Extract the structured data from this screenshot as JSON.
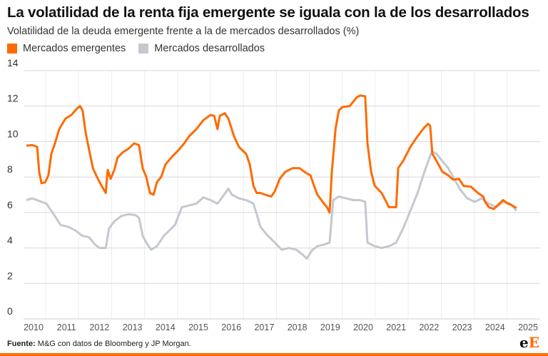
{
  "title": "La volatilidad de la renta fija emergente se iguala con la de los desarrollados",
  "subtitle": "Volatilidad de la deuda emergente frente a la de mercados desarrollados (%)",
  "footer": {
    "label": "Fuente:",
    "text": " M&G con datos de Bloomberg y JP Morgan."
  },
  "logo": {
    "text": "eE",
    "colors": [
      "#111111",
      "#ff6a00"
    ]
  },
  "accent": "#ff6a00",
  "chart_data": {
    "type": "line",
    "title": "",
    "xlabel": "",
    "ylabel": "",
    "ylim": [
      0,
      14
    ],
    "yticks": [
      0,
      2,
      4,
      6,
      8,
      10,
      12,
      14
    ],
    "xlim": [
      2009.75,
      2025.3
    ],
    "xticks": [
      2010,
      2011,
      2012,
      2013,
      2014,
      2015,
      2016,
      2017,
      2018,
      2019,
      2020,
      2021,
      2022,
      2023,
      2024,
      2025
    ],
    "grid": true,
    "legend": "top-left",
    "series": [
      {
        "name": "Mercados emergentes",
        "color": "#ff6a00",
        "points": [
          [
            2009.78,
            9.77
          ],
          [
            2009.96,
            9.8
          ],
          [
            2010.11,
            9.7
          ],
          [
            2010.17,
            8.3
          ],
          [
            2010.24,
            7.65
          ],
          [
            2010.35,
            7.7
          ],
          [
            2010.45,
            8.1
          ],
          [
            2010.54,
            9.3
          ],
          [
            2010.65,
            9.9
          ],
          [
            2010.78,
            10.7
          ],
          [
            2010.97,
            11.3
          ],
          [
            2011.15,
            11.5
          ],
          [
            2011.32,
            11.87
          ],
          [
            2011.41,
            12.0
          ],
          [
            2011.49,
            11.75
          ],
          [
            2011.58,
            10.5
          ],
          [
            2011.69,
            9.5
          ],
          [
            2011.8,
            8.5
          ],
          [
            2011.95,
            7.9
          ],
          [
            2012.08,
            7.45
          ],
          [
            2012.19,
            7.1
          ],
          [
            2012.25,
            8.4
          ],
          [
            2012.34,
            7.9
          ],
          [
            2012.45,
            8.4
          ],
          [
            2012.55,
            9.1
          ],
          [
            2012.71,
            9.4
          ],
          [
            2012.88,
            9.6
          ],
          [
            2013.05,
            9.9
          ],
          [
            2013.2,
            9.8
          ],
          [
            2013.31,
            8.5
          ],
          [
            2013.42,
            8.0
          ],
          [
            2013.53,
            7.1
          ],
          [
            2013.64,
            7.0
          ],
          [
            2013.74,
            7.7
          ],
          [
            2013.87,
            8.0
          ],
          [
            2014.0,
            8.7
          ],
          [
            2014.18,
            9.1
          ],
          [
            2014.39,
            9.5
          ],
          [
            2014.57,
            9.9
          ],
          [
            2014.72,
            10.3
          ],
          [
            2014.94,
            10.7
          ],
          [
            2015.15,
            11.2
          ],
          [
            2015.37,
            11.5
          ],
          [
            2015.48,
            11.45
          ],
          [
            2015.58,
            10.7
          ],
          [
            2015.65,
            11.45
          ],
          [
            2015.8,
            11.6
          ],
          [
            2015.91,
            11.3
          ],
          [
            2016.08,
            10.3
          ],
          [
            2016.23,
            9.7
          ],
          [
            2016.45,
            9.3
          ],
          [
            2016.56,
            8.7
          ],
          [
            2016.67,
            7.5
          ],
          [
            2016.77,
            7.1
          ],
          [
            2016.88,
            7.1
          ],
          [
            2017.03,
            7.0
          ],
          [
            2017.21,
            6.9
          ],
          [
            2017.32,
            7.2
          ],
          [
            2017.47,
            7.9
          ],
          [
            2017.64,
            8.3
          ],
          [
            2017.86,
            8.5
          ],
          [
            2018.07,
            8.5
          ],
          [
            2018.25,
            8.25
          ],
          [
            2018.4,
            8.1
          ],
          [
            2018.51,
            7.5
          ],
          [
            2018.61,
            7.0
          ],
          [
            2018.77,
            6.6
          ],
          [
            2018.9,
            6.3
          ],
          [
            2018.98,
            6.0
          ],
          [
            2019.05,
            8.3
          ],
          [
            2019.16,
            10.7
          ],
          [
            2019.26,
            11.75
          ],
          [
            2019.37,
            11.95
          ],
          [
            2019.59,
            12.0
          ],
          [
            2019.81,
            12.5
          ],
          [
            2019.91,
            12.6
          ],
          [
            2020.06,
            12.55
          ],
          [
            2020.13,
            9.9
          ],
          [
            2020.24,
            8.3
          ],
          [
            2020.35,
            7.5
          ],
          [
            2020.56,
            7.1
          ],
          [
            2020.67,
            6.7
          ],
          [
            2020.78,
            6.3
          ],
          [
            2021.0,
            6.3
          ],
          [
            2021.06,
            8.5
          ],
          [
            2021.21,
            8.9
          ],
          [
            2021.43,
            9.7
          ],
          [
            2021.65,
            10.3
          ],
          [
            2021.86,
            10.8
          ],
          [
            2021.97,
            11.0
          ],
          [
            2022.03,
            10.9
          ],
          [
            2022.1,
            9.3
          ],
          [
            2022.23,
            8.9
          ],
          [
            2022.4,
            8.3
          ],
          [
            2022.58,
            8.1
          ],
          [
            2022.73,
            7.85
          ],
          [
            2022.9,
            7.9
          ],
          [
            2023.05,
            7.5
          ],
          [
            2023.27,
            7.45
          ],
          [
            2023.48,
            7.1
          ],
          [
            2023.64,
            6.9
          ],
          [
            2023.7,
            6.6
          ],
          [
            2023.81,
            6.3
          ],
          [
            2023.96,
            6.2
          ],
          [
            2024.13,
            6.5
          ],
          [
            2024.24,
            6.7
          ],
          [
            2024.39,
            6.5
          ],
          [
            2024.52,
            6.4
          ],
          [
            2024.65,
            6.25
          ]
        ]
      },
      {
        "name": "Mercados desarrollados",
        "color": "#c4c8cf",
        "points": [
          [
            2009.78,
            6.7
          ],
          [
            2009.96,
            6.8
          ],
          [
            2010.17,
            6.65
          ],
          [
            2010.39,
            6.5
          ],
          [
            2010.61,
            5.9
          ],
          [
            2010.82,
            5.3
          ],
          [
            2011.04,
            5.2
          ],
          [
            2011.26,
            5.0
          ],
          [
            2011.47,
            4.7
          ],
          [
            2011.69,
            4.6
          ],
          [
            2011.86,
            4.2
          ],
          [
            2012.01,
            4.0
          ],
          [
            2012.19,
            4.0
          ],
          [
            2012.29,
            5.1
          ],
          [
            2012.45,
            5.5
          ],
          [
            2012.66,
            5.8
          ],
          [
            2012.88,
            5.9
          ],
          [
            2013.1,
            5.85
          ],
          [
            2013.2,
            5.7
          ],
          [
            2013.31,
            4.7
          ],
          [
            2013.42,
            4.3
          ],
          [
            2013.57,
            3.9
          ],
          [
            2013.74,
            4.1
          ],
          [
            2013.96,
            4.7
          ],
          [
            2014.29,
            5.3
          ],
          [
            2014.5,
            6.3
          ],
          [
            2014.72,
            6.4
          ],
          [
            2014.94,
            6.5
          ],
          [
            2015.15,
            6.85
          ],
          [
            2015.37,
            6.7
          ],
          [
            2015.58,
            6.5
          ],
          [
            2015.74,
            6.9
          ],
          [
            2015.91,
            7.35
          ],
          [
            2016.02,
            7.0
          ],
          [
            2016.23,
            6.8
          ],
          [
            2016.45,
            6.7
          ],
          [
            2016.67,
            6.5
          ],
          [
            2016.77,
            5.9
          ],
          [
            2016.88,
            5.2
          ],
          [
            2017.1,
            4.7
          ],
          [
            2017.32,
            4.3
          ],
          [
            2017.53,
            3.9
          ],
          [
            2017.75,
            4.0
          ],
          [
            2017.97,
            3.9
          ],
          [
            2018.18,
            3.6
          ],
          [
            2018.29,
            3.4
          ],
          [
            2018.46,
            3.9
          ],
          [
            2018.61,
            4.1
          ],
          [
            2018.83,
            4.2
          ],
          [
            2018.98,
            4.3
          ],
          [
            2019.09,
            6.7
          ],
          [
            2019.26,
            6.9
          ],
          [
            2019.48,
            6.8
          ],
          [
            2019.7,
            6.7
          ],
          [
            2019.91,
            6.7
          ],
          [
            2020.06,
            6.6
          ],
          [
            2020.13,
            4.3
          ],
          [
            2020.35,
            4.1
          ],
          [
            2020.56,
            4.0
          ],
          [
            2020.78,
            4.1
          ],
          [
            2021.0,
            4.3
          ],
          [
            2021.21,
            5.1
          ],
          [
            2021.43,
            6.1
          ],
          [
            2021.65,
            7.1
          ],
          [
            2021.86,
            8.3
          ],
          [
            2022.08,
            9.45
          ],
          [
            2022.23,
            9.3
          ],
          [
            2022.4,
            8.9
          ],
          [
            2022.58,
            8.5
          ],
          [
            2022.73,
            8.0
          ],
          [
            2022.94,
            7.3
          ],
          [
            2023.16,
            6.8
          ],
          [
            2023.38,
            6.6
          ],
          [
            2023.59,
            6.8
          ],
          [
            2023.81,
            6.5
          ],
          [
            2024.03,
            6.3
          ],
          [
            2024.24,
            6.6
          ],
          [
            2024.46,
            6.5
          ],
          [
            2024.65,
            6.1
          ]
        ]
      }
    ]
  }
}
